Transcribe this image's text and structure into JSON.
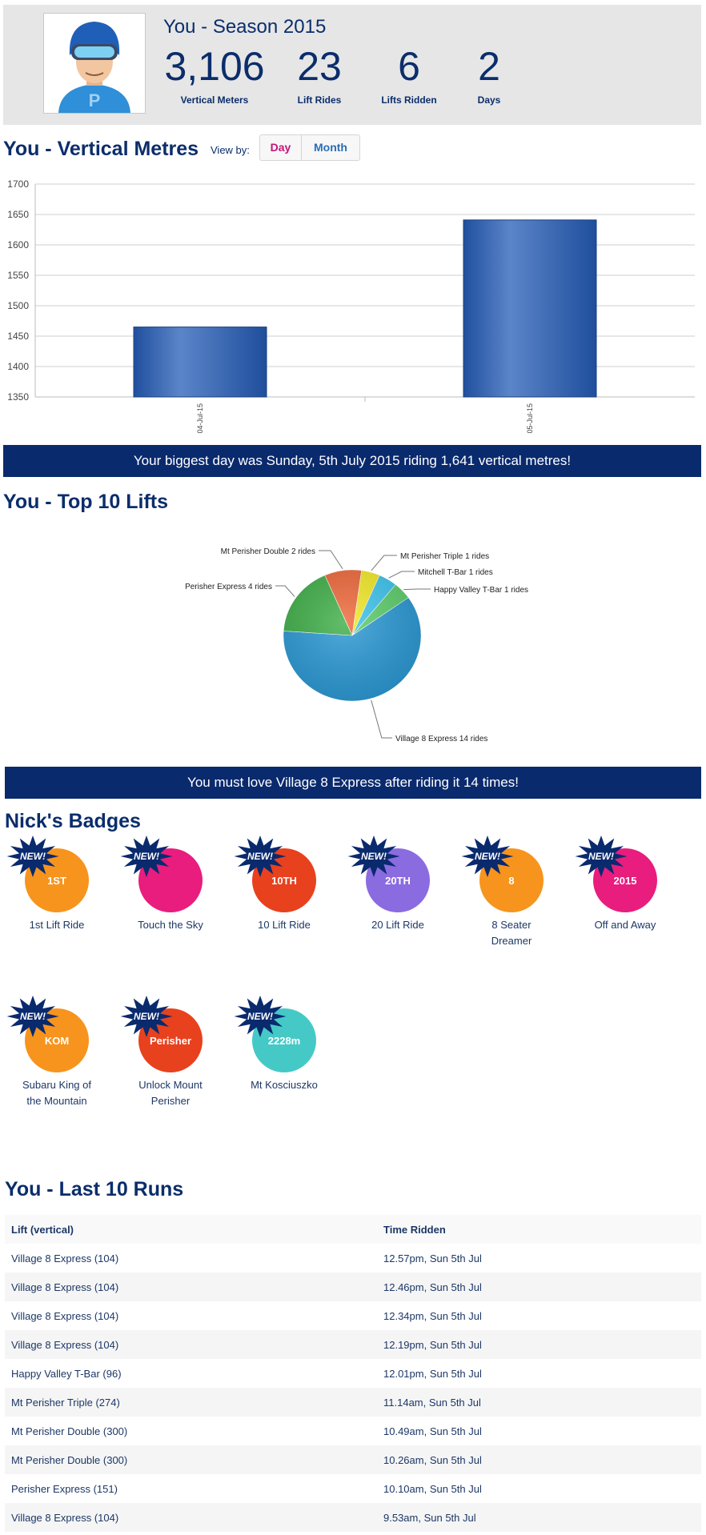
{
  "header": {
    "season_title": "You - Season 2015",
    "stats": [
      {
        "value": "3,106",
        "label": "Vertical Meters"
      },
      {
        "value": "23",
        "label": "Lift Rides"
      },
      {
        "value": "6",
        "label": "Lifts Ridden"
      },
      {
        "value": "2",
        "label": "Days"
      }
    ]
  },
  "vertical": {
    "title": "You - Vertical Metres",
    "view_by_label": "View by:",
    "toggle": {
      "day": "Day",
      "month": "Month"
    },
    "colors": {
      "day": "#c0157a",
      "month": "#2a6db5",
      "bar": "#2556a8"
    }
  },
  "chart_data": [
    {
      "type": "bar",
      "categories": [
        "04-Jul-15",
        "05-Jul-15"
      ],
      "values": [
        1465,
        1641
      ],
      "ylim": [
        1350,
        1700
      ],
      "yticks": [
        "1350",
        "1400",
        "1450",
        "1500",
        "1550",
        "1600",
        "1650",
        "1700"
      ],
      "grid": true
    },
    {
      "type": "pie",
      "slices": [
        {
          "label": "Village 8 Express 14 rides",
          "value": 14,
          "color": "#2e9bd6"
        },
        {
          "label": "Perisher Express 4 rides",
          "value": 4,
          "color": "#41b04a"
        },
        {
          "label": "Mt Perisher Double 2 rides",
          "value": 2,
          "color": "#ee6a3c"
        },
        {
          "label": "Mt Perisher Triple 1 rides",
          "value": 1,
          "color": "#f4ea2a"
        },
        {
          "label": "Mitchell T-Bar 1 rides",
          "value": 1,
          "color": "#40c6ef"
        },
        {
          "label": "Happy Valley T-Bar 1 rides",
          "value": 1,
          "color": "#5fd06e"
        }
      ]
    }
  ],
  "banners": {
    "biggest_day": "Your biggest day was Sunday, 5th July 2015 riding 1,641 vertical metres!",
    "favourite_lift": "You must love Village 8 Express after riding it 14 times!"
  },
  "top_lifts": {
    "title": "You - Top 10 Lifts"
  },
  "badges": {
    "title": "Nick's Badges",
    "new_label": "NEW!",
    "items": [
      {
        "label": "1st Lift Ride",
        "inner": "1ST",
        "color": "#f7941d",
        "icon": "chairlift-icon"
      },
      {
        "label": "Touch the Sky",
        "inner": "",
        "color": "#e81d7e",
        "icon": "rainbow-cloud-icon"
      },
      {
        "label": "10 Lift Ride",
        "inner": "10TH",
        "color": "#e8411e",
        "icon": "chairlift-icon"
      },
      {
        "label": "20 Lift Ride",
        "inner": "20TH",
        "color": "#8b6be0",
        "icon": "chairlift-icon"
      },
      {
        "label": "8 Seater Dreamer",
        "inner": "8",
        "color": "#f7941d",
        "icon": "car-icon"
      },
      {
        "label": "Off and Away",
        "inner": "2015",
        "color": "#e81d7e",
        "icon": "hand-icon"
      },
      {
        "label": "Subaru King of the Mountain",
        "inner": "KOM",
        "color": "#f7941d",
        "icon": "car-icon"
      },
      {
        "label": "Unlock Mount Perisher",
        "inner": "Perisher",
        "color": "#e8411e",
        "icon": "key-icon"
      },
      {
        "label": "Mt Kosciuszko",
        "inner": "2228m",
        "color": "#45c9c7",
        "icon": "mountain-icon"
      }
    ]
  },
  "runs": {
    "title": "You - Last 10 Runs",
    "columns": [
      "Lift (vertical)",
      "Time Ridden"
    ],
    "rows": [
      [
        "Village 8 Express (104)",
        "12.57pm, Sun 5th Jul"
      ],
      [
        "Village 8 Express (104)",
        "12.46pm, Sun 5th Jul"
      ],
      [
        "Village 8 Express (104)",
        "12.34pm, Sun 5th Jul"
      ],
      [
        "Village 8 Express (104)",
        "12.19pm, Sun 5th Jul"
      ],
      [
        "Happy Valley T-Bar (96)",
        "12.01pm, Sun 5th Jul"
      ],
      [
        "Mt Perisher Triple (274)",
        "11.14am, Sun 5th Jul"
      ],
      [
        "Mt Perisher Double (300)",
        "10.49am, Sun 5th Jul"
      ],
      [
        "Mt Perisher Double (300)",
        "10.26am, Sun 5th Jul"
      ],
      [
        "Perisher Express (151)",
        "10.10am, Sun 5th Jul"
      ],
      [
        "Village 8 Express (104)",
        "9.53am, Sun 5th Jul"
      ]
    ]
  }
}
